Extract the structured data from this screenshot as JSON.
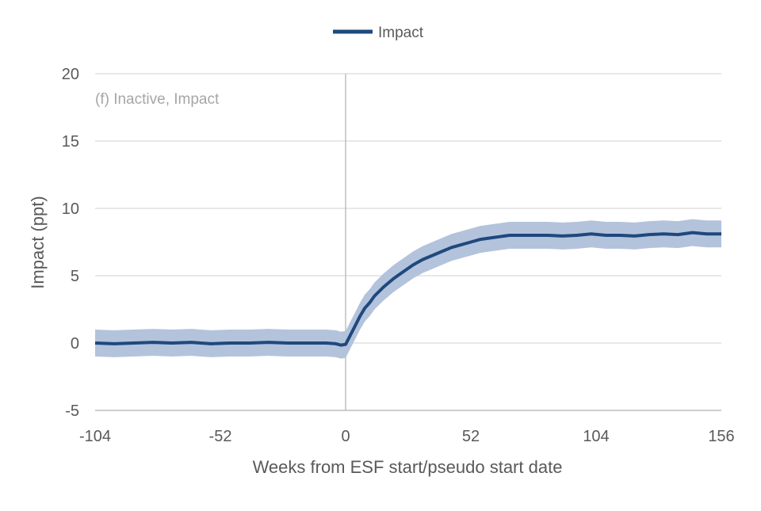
{
  "chart_data": {
    "type": "line",
    "title": "",
    "annotation": "(f) Inactive, Impact",
    "xlabel": "Weeks from ESF start/pseudo start date",
    "ylabel": "Impact (ppt)",
    "xlim": [
      -104,
      156
    ],
    "ylim": [
      -5,
      20
    ],
    "x_ticks": [
      -104,
      -52,
      0,
      52,
      104,
      156
    ],
    "y_ticks": [
      -5,
      0,
      5,
      10,
      15,
      20
    ],
    "grid": "horizontal",
    "legend": {
      "position": "top-center",
      "entries": [
        "Impact"
      ]
    },
    "colors": {
      "line": "#1f497d",
      "band": "#b4c3dc",
      "grid": "#d9d9d9",
      "axis_text": "#595959",
      "annotation_text": "#a6a6a6",
      "zero_line": "#bfbfbf"
    },
    "series": [
      {
        "name": "Impact",
        "x": [
          -104,
          -96,
          -88,
          -80,
          -72,
          -64,
          -56,
          -48,
          -40,
          -32,
          -24,
          -16,
          -8,
          -4,
          -2,
          0,
          2,
          4,
          6,
          8,
          10,
          12,
          16,
          20,
          24,
          28,
          32,
          36,
          40,
          44,
          48,
          52,
          56,
          60,
          64,
          68,
          72,
          78,
          84,
          90,
          96,
          102,
          108,
          114,
          120,
          126,
          132,
          138,
          144,
          150,
          156
        ],
        "y": [
          0.0,
          -0.05,
          0.0,
          0.05,
          0.0,
          0.05,
          -0.05,
          0.0,
          0.0,
          0.05,
          0.0,
          0.0,
          0.0,
          -0.05,
          -0.15,
          -0.1,
          0.6,
          1.3,
          2.0,
          2.6,
          3.0,
          3.5,
          4.2,
          4.8,
          5.3,
          5.8,
          6.2,
          6.5,
          6.8,
          7.1,
          7.3,
          7.5,
          7.7,
          7.8,
          7.9,
          8.0,
          8.0,
          8.0,
          8.0,
          7.95,
          8.0,
          8.1,
          8.0,
          8.0,
          7.95,
          8.05,
          8.1,
          8.05,
          8.2,
          8.1,
          8.1
        ],
        "ci_halfwidth": 1.0
      }
    ]
  }
}
